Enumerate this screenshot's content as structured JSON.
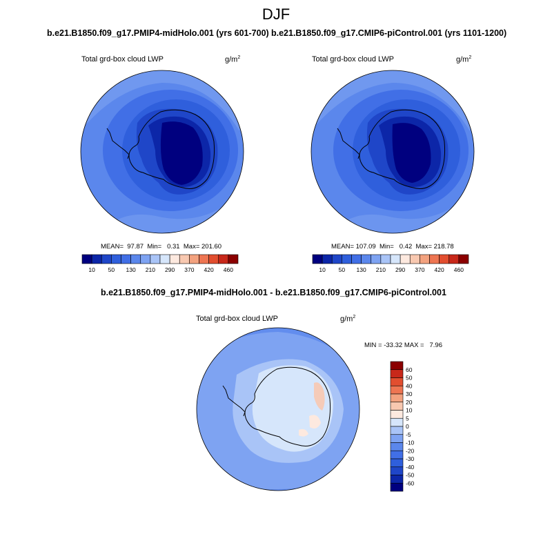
{
  "figure": {
    "title": "DJF"
  },
  "panels": [
    {
      "run_title": "b.e21.B1850.f09_g17.PMIP4-midHolo.001 (yrs 601-700)",
      "variable": "Total grd-box cloud LWP",
      "unit": "g/m",
      "unit_exp": "2",
      "stats": "MEAN=  97.87  Min=   0.31  Max= 201.60",
      "map_type": "south-polar-stereographic",
      "colorbar": {
        "labels": [
          "10",
          "50",
          "130",
          "210",
          "290",
          "370",
          "420",
          "460"
        ],
        "colors": [
          "#00007f",
          "#0c26a8",
          "#1f46c8",
          "#2f5fdc",
          "#416fe6",
          "#5b87ec",
          "#7ea3f2",
          "#a9c4f7",
          "#d6e6fb",
          "#fde9df",
          "#f8c8b0",
          "#f3a27f",
          "#ee7552",
          "#e24e2f",
          "#c8281a",
          "#8b0000"
        ]
      }
    },
    {
      "run_title": "b.e21.B1850.f09_g17.CMIP6-piControl.001 (yrs 1101-1200)",
      "variable": "Total grd-box cloud LWP",
      "unit": "g/m",
      "unit_exp": "2",
      "stats": "MEAN= 107.09  Min=   0.42  Max= 218.78",
      "map_type": "south-polar-stereographic",
      "colorbar": {
        "labels": [
          "10",
          "50",
          "130",
          "210",
          "290",
          "370",
          "420",
          "460"
        ],
        "colors": [
          "#00007f",
          "#0c26a8",
          "#1f46c8",
          "#2f5fdc",
          "#416fe6",
          "#5b87ec",
          "#7ea3f2",
          "#a9c4f7",
          "#d6e6fb",
          "#fde9df",
          "#f8c8b0",
          "#f3a27f",
          "#ee7552",
          "#e24e2f",
          "#c8281a",
          "#8b0000"
        ]
      }
    }
  ],
  "diff_panel": {
    "run_title": "b.e21.B1850.f09_g17.PMIP4-midHolo.001 - b.e21.B1850.f09_g17.CMIP6-piControl.001",
    "variable": "Total grd-box cloud LWP",
    "unit": "g/m",
    "unit_exp": "2",
    "stats": "MIN = -33.32 MAX =   7.96",
    "map_type": "south-polar-stereographic",
    "colorbar": {
      "labels": [
        "60",
        "50",
        "40",
        "30",
        "20",
        "10",
        "5",
        "0",
        "-5",
        "-10",
        "-20",
        "-30",
        "-40",
        "-50",
        "-60"
      ],
      "colors": [
        "#8b0000",
        "#c8281a",
        "#e24e2f",
        "#ee7552",
        "#f3a27f",
        "#f8c8b0",
        "#fde9df",
        "#d6e6fb",
        "#a9c4f7",
        "#7ea3f2",
        "#5b87ec",
        "#416fe6",
        "#2f5fdc",
        "#1f46c8",
        "#0c26a8",
        "#00007f"
      ]
    }
  }
}
